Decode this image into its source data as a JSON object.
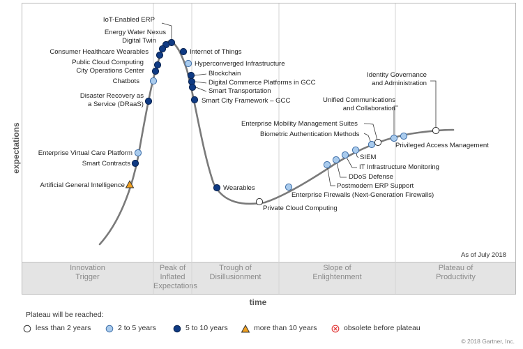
{
  "chart": {
    "y_axis_title": "expectations",
    "x_axis_title": "time",
    "as_of": "As of July 2018",
    "copyright": "© 2018 Gartner, Inc.",
    "phases": [
      {
        "label": "Innovation\nTrigger"
      },
      {
        "label": "Peak of\nInflated\nExpectations"
      },
      {
        "label": "Trough of\nDisillusionment"
      },
      {
        "label": "Slope of\nEnlightenment"
      },
      {
        "label": "Plateau of\nProductivity"
      }
    ]
  },
  "legend": {
    "title": "Plateau will be reached:",
    "items": [
      {
        "label": "less than 2 years",
        "marker": "circle",
        "color": "#ffffff"
      },
      {
        "label": "2 to 5 years",
        "marker": "circle",
        "color": "#a9cbed"
      },
      {
        "label": "5 to 10 years",
        "marker": "circle",
        "color": "#0f3a83"
      },
      {
        "label": "more than 10 years",
        "marker": "triangle",
        "color": "#f0a020"
      },
      {
        "label": "obsolete before plateau",
        "marker": "cross",
        "color": "#e23b3b"
      }
    ]
  },
  "technologies": [
    {
      "label": "IoT-Enabled ERP",
      "category": "5 to 10 years"
    },
    {
      "label": "Energy Water Nexus",
      "category": "5 to 10 years"
    },
    {
      "label": "Digital Twin",
      "category": "5 to 10 years"
    },
    {
      "label": "Consumer Healthcare Wearables",
      "category": "5 to 10 years"
    },
    {
      "label": "Public Cloud Computing",
      "category": "5 to 10 years"
    },
    {
      "label": "City Operations Center",
      "category": "5 to 10 years"
    },
    {
      "label": "Chatbots",
      "category": "2 to 5 years"
    },
    {
      "label": "Disaster Recovery as\na Service (DRaaS)",
      "category": "5 to 10 years"
    },
    {
      "label": "Enterprise Virtual Care Platform",
      "category": "2 to 5 years"
    },
    {
      "label": "Smart Contracts",
      "category": "5 to 10 years"
    },
    {
      "label": "Artificial General Intelligence",
      "category": "more than 10 years"
    },
    {
      "label": "Internet of Things",
      "category": "5 to 10 years"
    },
    {
      "label": "Hyperconverged Infrastructure",
      "category": "2 to 5 years"
    },
    {
      "label": "Blockchain",
      "category": "5 to 10 years"
    },
    {
      "label": "Digital Commerce Platforms in GCC",
      "category": "5 to 10 years"
    },
    {
      "label": "Smart Transportation",
      "category": "5 to 10 years"
    },
    {
      "label": "Smart City Framework – GCC",
      "category": "5 to 10 years"
    },
    {
      "label": "Wearables",
      "category": "5 to 10 years"
    },
    {
      "label": "Private Cloud Computing",
      "category": "less than 2 years"
    },
    {
      "label": "Enterprise Firewalls (Next-Generation Firewalls)",
      "category": "2 to 5 years"
    },
    {
      "label": "Postmodern ERP Support",
      "category": "2 to 5 years"
    },
    {
      "label": "DDoS Defense",
      "category": "2 to 5 years"
    },
    {
      "label": "IT Infrastructure Monitoring",
      "category": "2 to 5 years"
    },
    {
      "label": "SIEM",
      "category": "2 to 5 years"
    },
    {
      "label": "Biometric Authentication Methods",
      "category": "2 to 5 years"
    },
    {
      "label": "Enterprise Mobility Management Suites",
      "category": "less than 2 years"
    },
    {
      "label": "Unified Communications\nand Collaboration",
      "category": "2 to 5 years"
    },
    {
      "label": "Privileged Access Management",
      "category": "2 to 5 years"
    },
    {
      "label": "Identity Governance\nand Administration",
      "category": "less than 2 years"
    }
  ]
}
